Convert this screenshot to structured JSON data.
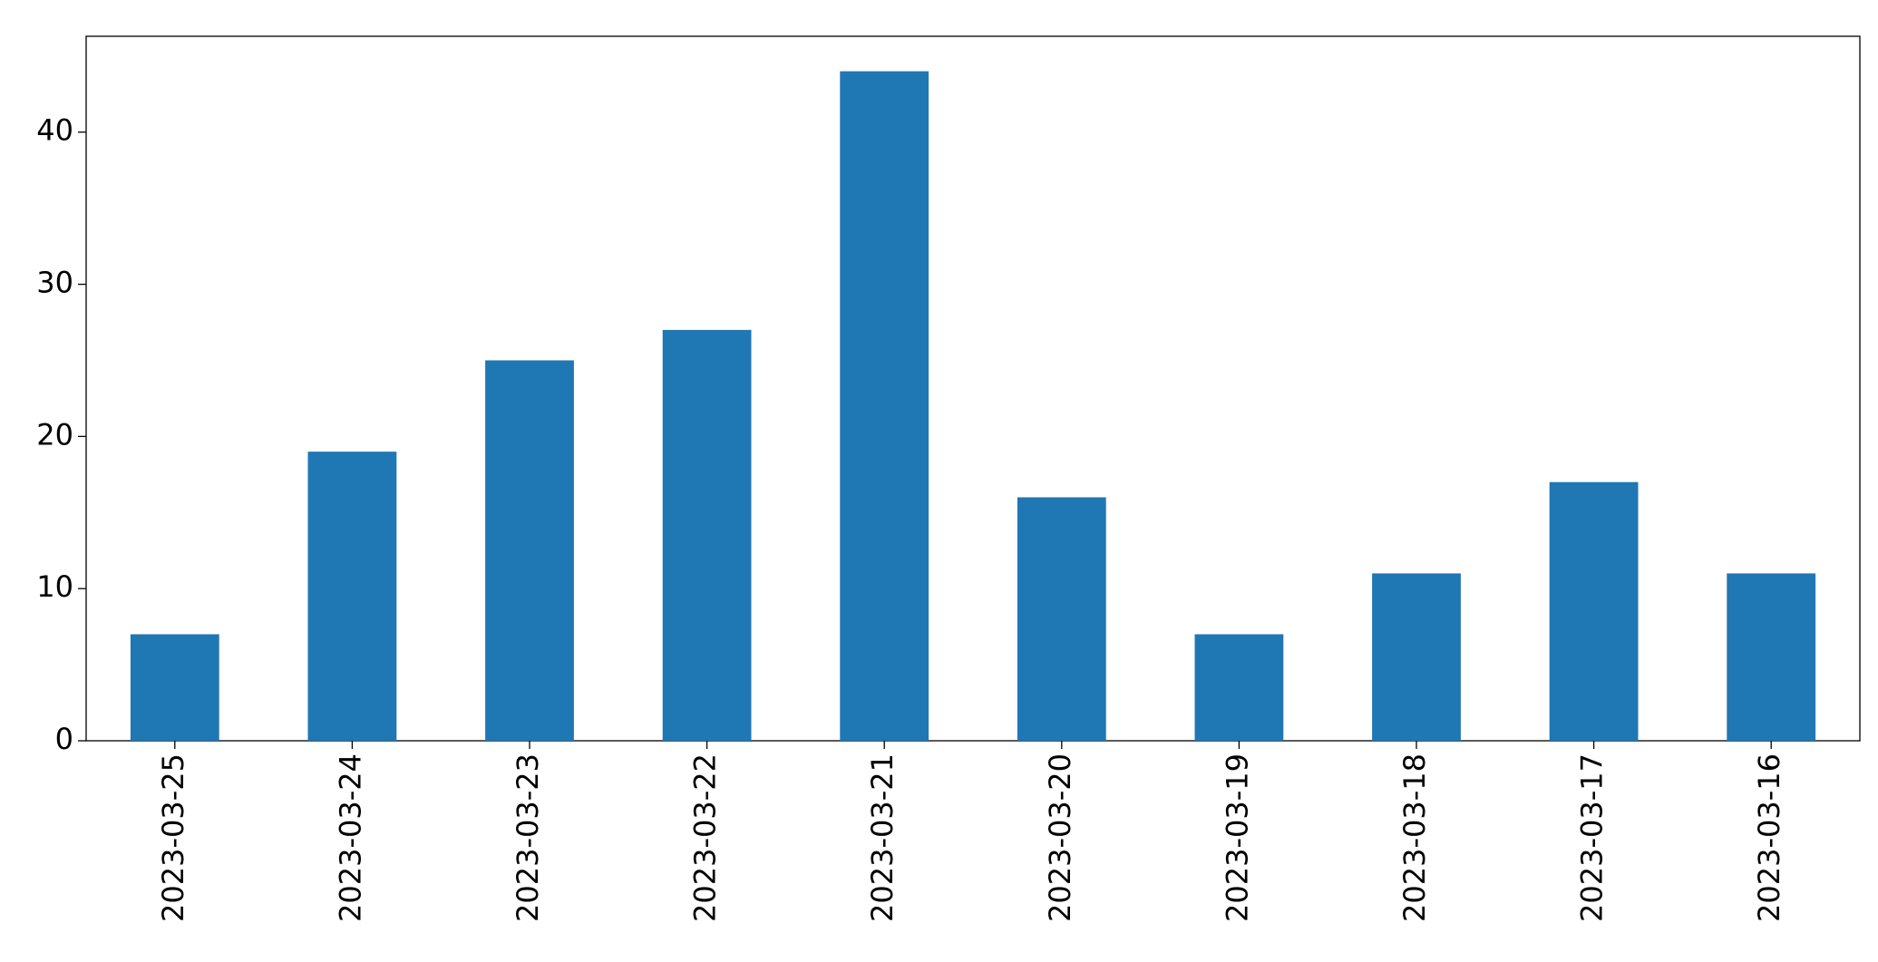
{
  "chart_data": {
    "type": "bar",
    "categories": [
      "2023-03-25",
      "2023-03-24",
      "2023-03-23",
      "2023-03-22",
      "2023-03-21",
      "2023-03-20",
      "2023-03-19",
      "2023-03-18",
      "2023-03-17",
      "2023-03-16"
    ],
    "values": [
      7,
      19,
      25,
      27,
      44,
      16,
      7,
      11,
      17,
      11
    ],
    "color": "#1f77b4",
    "ylim": [
      0,
      46.3
    ],
    "yticks": [
      0,
      10,
      20,
      30,
      40
    ],
    "grid": false
  }
}
